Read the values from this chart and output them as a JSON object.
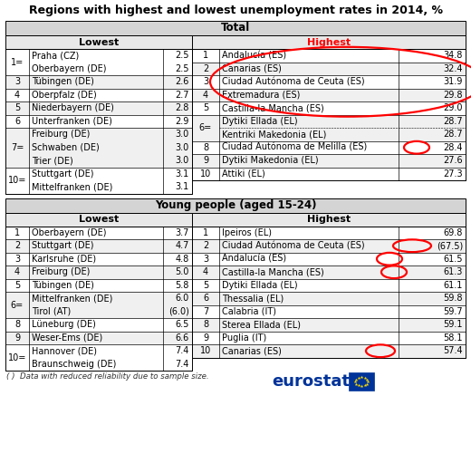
{
  "title": "Regions with highest and lowest unemployment rates in 2014, %",
  "t1_header": "Total",
  "t2_header": "Young people (aged 15-24)",
  "t1_left_groups": [
    {
      "rank": "1=",
      "names": [
        "Praha (CZ)",
        "Oberbayern (DE)"
      ],
      "vals": [
        "2.5",
        "2.5"
      ]
    },
    {
      "rank": "3",
      "names": [
        "Tübingen (DE)"
      ],
      "vals": [
        "2.6"
      ]
    },
    {
      "rank": "4",
      "names": [
        "Oberpfalz (DE)"
      ],
      "vals": [
        "2.7"
      ]
    },
    {
      "rank": "5",
      "names": [
        "Niederbayern (DE)"
      ],
      "vals": [
        "2.8"
      ]
    },
    {
      "rank": "6",
      "names": [
        "Unterfranken (DE)"
      ],
      "vals": [
        "2.9"
      ]
    },
    {
      "rank": "7=",
      "names": [
        "Freiburg (DE)",
        "Schwaben (DE)",
        "Trier (DE)"
      ],
      "vals": [
        "3.0",
        "3.0",
        "3.0"
      ]
    },
    {
      "rank": "10=",
      "names": [
        "Stuttgart (DE)",
        "Mittelfranken (DE)"
      ],
      "vals": [
        "3.1",
        "3.1"
      ]
    }
  ],
  "t1_right_groups": [
    {
      "rank": "1",
      "names": [
        "Andalucía (ES)"
      ],
      "vals": [
        "34.8"
      ]
    },
    {
      "rank": "2",
      "names": [
        "Canarias (ES)"
      ],
      "vals": [
        "32.4"
      ]
    },
    {
      "rank": "3",
      "names": [
        "Ciudad Autónoma de Ceuta (ES)"
      ],
      "vals": [
        "31.9"
      ]
    },
    {
      "rank": "4",
      "names": [
        "Extremadura (ES)"
      ],
      "vals": [
        "29.8"
      ]
    },
    {
      "rank": "5",
      "names": [
        "Castilla-la Mancha (ES)"
      ],
      "vals": [
        "29.0"
      ]
    },
    {
      "rank": "6=",
      "names": [
        "Dytiki Ellada (EL)",
        "Kentriki Makedonia (EL)"
      ],
      "vals": [
        "28.7",
        "28.7"
      ]
    },
    {
      "rank": "8",
      "names": [
        "Ciudad Autónoma de Melilla (ES)"
      ],
      "vals": [
        "28.4"
      ]
    },
    {
      "rank": "9",
      "names": [
        "Dytiki Makedonia (EL)"
      ],
      "vals": [
        "27.6"
      ]
    },
    {
      "rank": "10",
      "names": [
        "Attiki (EL)"
      ],
      "vals": [
        "27.3"
      ]
    }
  ],
  "t2_left_groups": [
    {
      "rank": "1",
      "names": [
        "Oberbayern (DE)"
      ],
      "vals": [
        "3.7"
      ]
    },
    {
      "rank": "2",
      "names": [
        "Stuttgart (DE)"
      ],
      "vals": [
        "4.7"
      ]
    },
    {
      "rank": "3",
      "names": [
        "Karlsruhe (DE)"
      ],
      "vals": [
        "4.8"
      ]
    },
    {
      "rank": "4",
      "names": [
        "Freiburg (DE)"
      ],
      "vals": [
        "5.0"
      ]
    },
    {
      "rank": "5",
      "names": [
        "Tübingen (DE)"
      ],
      "vals": [
        "5.8"
      ]
    },
    {
      "rank": "6=",
      "names": [
        "Mittelfranken (DE)",
        "Tirol (AT)"
      ],
      "vals": [
        "6.0",
        "(6.0)"
      ]
    },
    {
      "rank": "8",
      "names": [
        "Lüneburg (DE)"
      ],
      "vals": [
        "6.5"
      ]
    },
    {
      "rank": "9",
      "names": [
        "Weser-Ems (DE)"
      ],
      "vals": [
        "6.6"
      ]
    },
    {
      "rank": "10=",
      "names": [
        "Hannover (DE)",
        "Braunschweig (DE)"
      ],
      "vals": [
        "7.4",
        "7.4"
      ]
    }
  ],
  "t2_right_groups": [
    {
      "rank": "1",
      "names": [
        "Ipeiros (EL)"
      ],
      "vals": [
        "69.8"
      ]
    },
    {
      "rank": "2",
      "names": [
        "Ciudad Autónoma de Ceuta (ES)"
      ],
      "vals": [
        "(67.5)"
      ]
    },
    {
      "rank": "3",
      "names": [
        "Andalucía (ES)"
      ],
      "vals": [
        "61.5"
      ]
    },
    {
      "rank": "4",
      "names": [
        "Castilla-la Mancha (ES)"
      ],
      "vals": [
        "61.3"
      ]
    },
    {
      "rank": "5",
      "names": [
        "Dytiki Ellada (EL)"
      ],
      "vals": [
        "61.1"
      ]
    },
    {
      "rank": "6",
      "names": [
        "Thessalia (EL)"
      ],
      "vals": [
        "59.8"
      ]
    },
    {
      "rank": "7",
      "names": [
        "Calabria (IT)"
      ],
      "vals": [
        "59.7"
      ]
    },
    {
      "rank": "8",
      "names": [
        "Sterea Ellada (EL)"
      ],
      "vals": [
        "59.1"
      ]
    },
    {
      "rank": "9",
      "names": [
        "Puglia (IT)"
      ],
      "vals": [
        "58.1"
      ]
    },
    {
      "rank": "10",
      "names": [
        "Canarias (ES)"
      ],
      "vals": [
        "57.4"
      ]
    }
  ],
  "footnote": "( )  Data with reduced reliability due to sample size.",
  "eurostat_color": "#003399"
}
